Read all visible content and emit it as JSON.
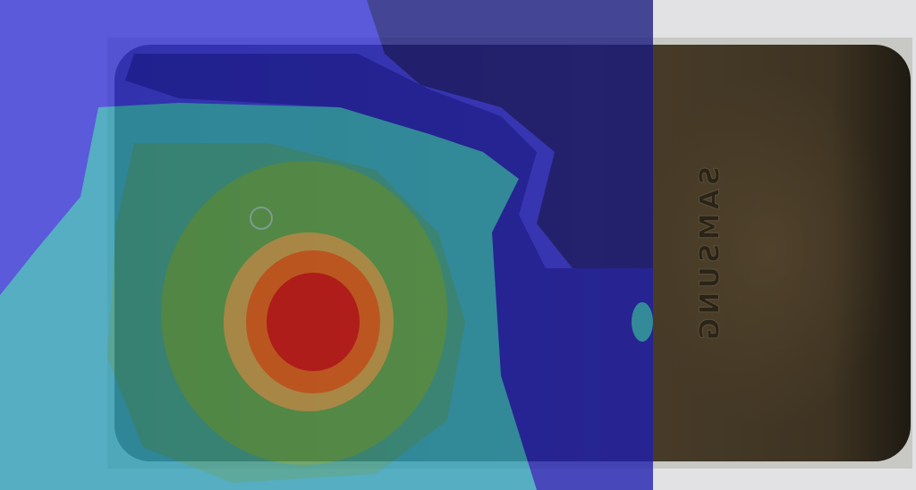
{
  "image": {
    "brand_text": "SAMSUNG"
  }
}
